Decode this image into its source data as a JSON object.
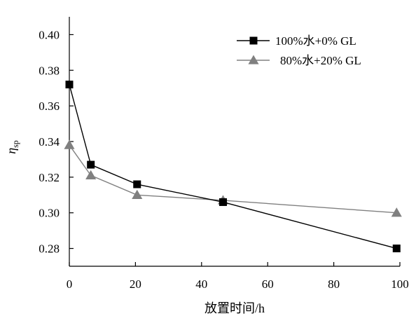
{
  "chart_data": {
    "type": "line",
    "xlabel": "放置时间/h",
    "ylabel": "η",
    "ylabel_sub": "sp",
    "xlim": [
      0,
      100
    ],
    "ylim": [
      0.27,
      0.41
    ],
    "x_ticks": [
      "0",
      "20",
      "40",
      "60",
      "80",
      "100"
    ],
    "y_ticks": [
      "0.28",
      "0.30",
      "0.32",
      "0.34",
      "0.36",
      "0.38",
      "0.40"
    ],
    "grid": false,
    "legend_position": "top-right",
    "series": [
      {
        "name": "100%水+0% GL",
        "marker": "square",
        "color": "#000000",
        "x": [
          0,
          6.5,
          20.5,
          46.5,
          99
        ],
        "y": [
          0.372,
          0.327,
          0.316,
          0.306,
          0.28
        ]
      },
      {
        "name": "80%水+20% GL",
        "marker": "triangle",
        "color": "#808080",
        "x": [
          0,
          6.5,
          20.5,
          46.5,
          99
        ],
        "y": [
          0.338,
          0.321,
          0.31,
          0.307,
          0.3
        ]
      }
    ]
  }
}
